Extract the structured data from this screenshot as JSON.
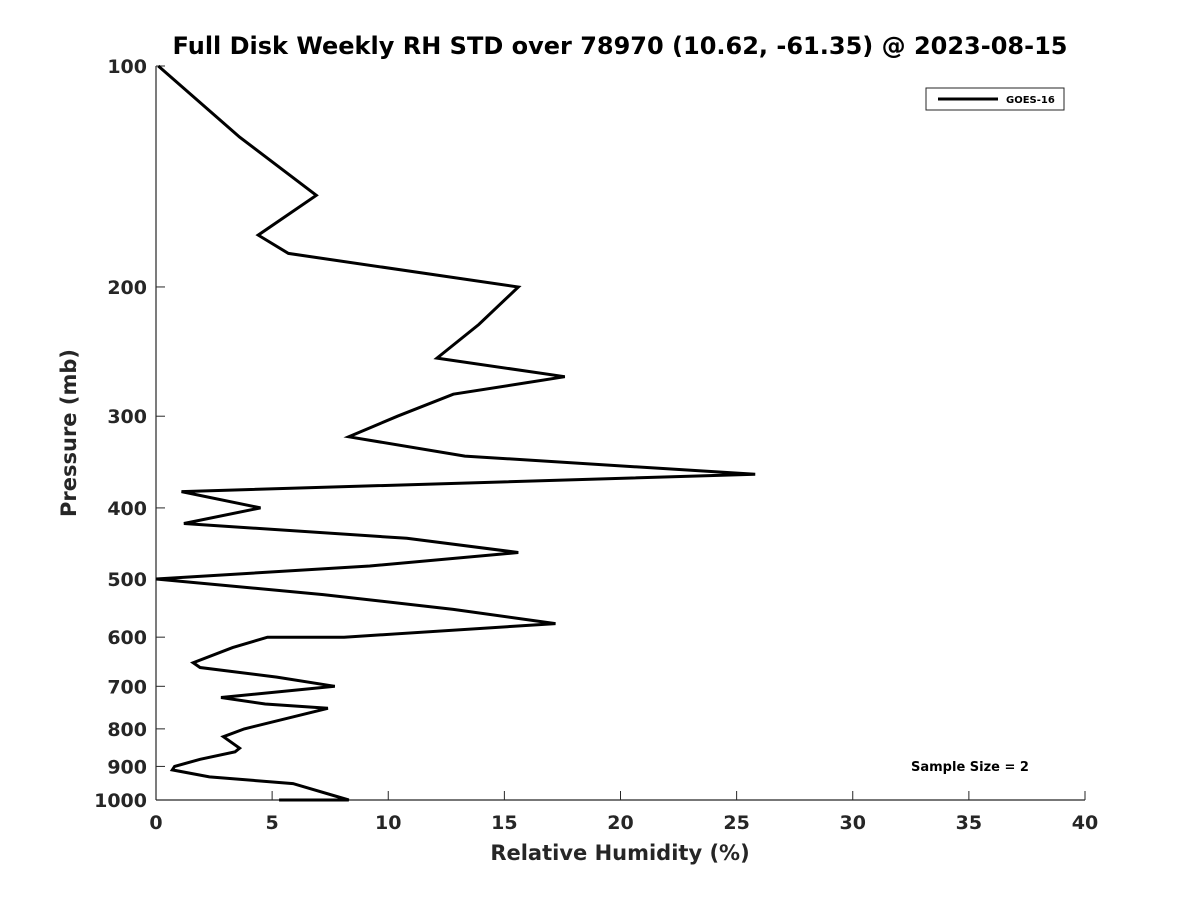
{
  "chart_data": {
    "type": "line",
    "title": "Full Disk Weekly RH STD over 78970 (10.62, -61.35) @ 2023-08-15",
    "xlabel": "Relative Humidity (%)",
    "ylabel": "Pressure (mb)",
    "xlim": [
      0,
      40
    ],
    "ylim": [
      100,
      1000
    ],
    "y_scale": "log",
    "y_reversed": true,
    "grid": false,
    "legend_position": "top-right",
    "x_ticks": [
      0,
      5,
      10,
      15,
      20,
      25,
      30,
      35,
      40
    ],
    "x_tick_labels": [
      "0",
      "5",
      "10",
      "15",
      "20",
      "25",
      "30",
      "35",
      "40"
    ],
    "y_ticks": [
      100,
      200,
      300,
      400,
      500,
      600,
      700,
      800,
      900,
      1000
    ],
    "y_tick_labels": [
      "100",
      "200",
      "300",
      "400",
      "500",
      "600",
      "700",
      "800",
      "900",
      "1000"
    ],
    "annotation": "Sample Size = 2",
    "series": [
      {
        "name": "GOES-16",
        "color": "#000000",
        "points": [
          [
            0.1,
            100
          ],
          [
            3.6,
            125
          ],
          [
            6.9,
            150
          ],
          [
            4.4,
            170
          ],
          [
            5.7,
            180
          ],
          [
            15.6,
            200
          ],
          [
            13.9,
            225
          ],
          [
            12.1,
            250
          ],
          [
            17.6,
            265
          ],
          [
            12.8,
            280
          ],
          [
            10.4,
            300
          ],
          [
            8.3,
            320
          ],
          [
            13.3,
            340
          ],
          [
            25.8,
            360
          ],
          [
            1.1,
            380
          ],
          [
            4.5,
            400
          ],
          [
            1.2,
            420
          ],
          [
            10.8,
            440
          ],
          [
            15.6,
            460
          ],
          [
            9.2,
            480
          ],
          [
            0.0,
            500
          ],
          [
            7.2,
            525
          ],
          [
            12.8,
            550
          ],
          [
            17.2,
            575
          ],
          [
            8.1,
            600
          ],
          [
            4.8,
            600
          ],
          [
            3.3,
            620
          ],
          [
            1.6,
            650
          ],
          [
            1.9,
            660
          ],
          [
            5.2,
            680
          ],
          [
            7.7,
            700
          ],
          [
            2.8,
            725
          ],
          [
            4.7,
            740
          ],
          [
            7.4,
            750
          ],
          [
            3.8,
            800
          ],
          [
            2.9,
            820
          ],
          [
            3.6,
            850
          ],
          [
            3.4,
            860
          ],
          [
            1.9,
            880
          ],
          [
            0.8,
            900
          ],
          [
            0.7,
            910
          ],
          [
            2.3,
            930
          ],
          [
            5.9,
            950
          ],
          [
            8.3,
            1000
          ],
          [
            5.3,
            1000
          ]
        ]
      }
    ]
  }
}
